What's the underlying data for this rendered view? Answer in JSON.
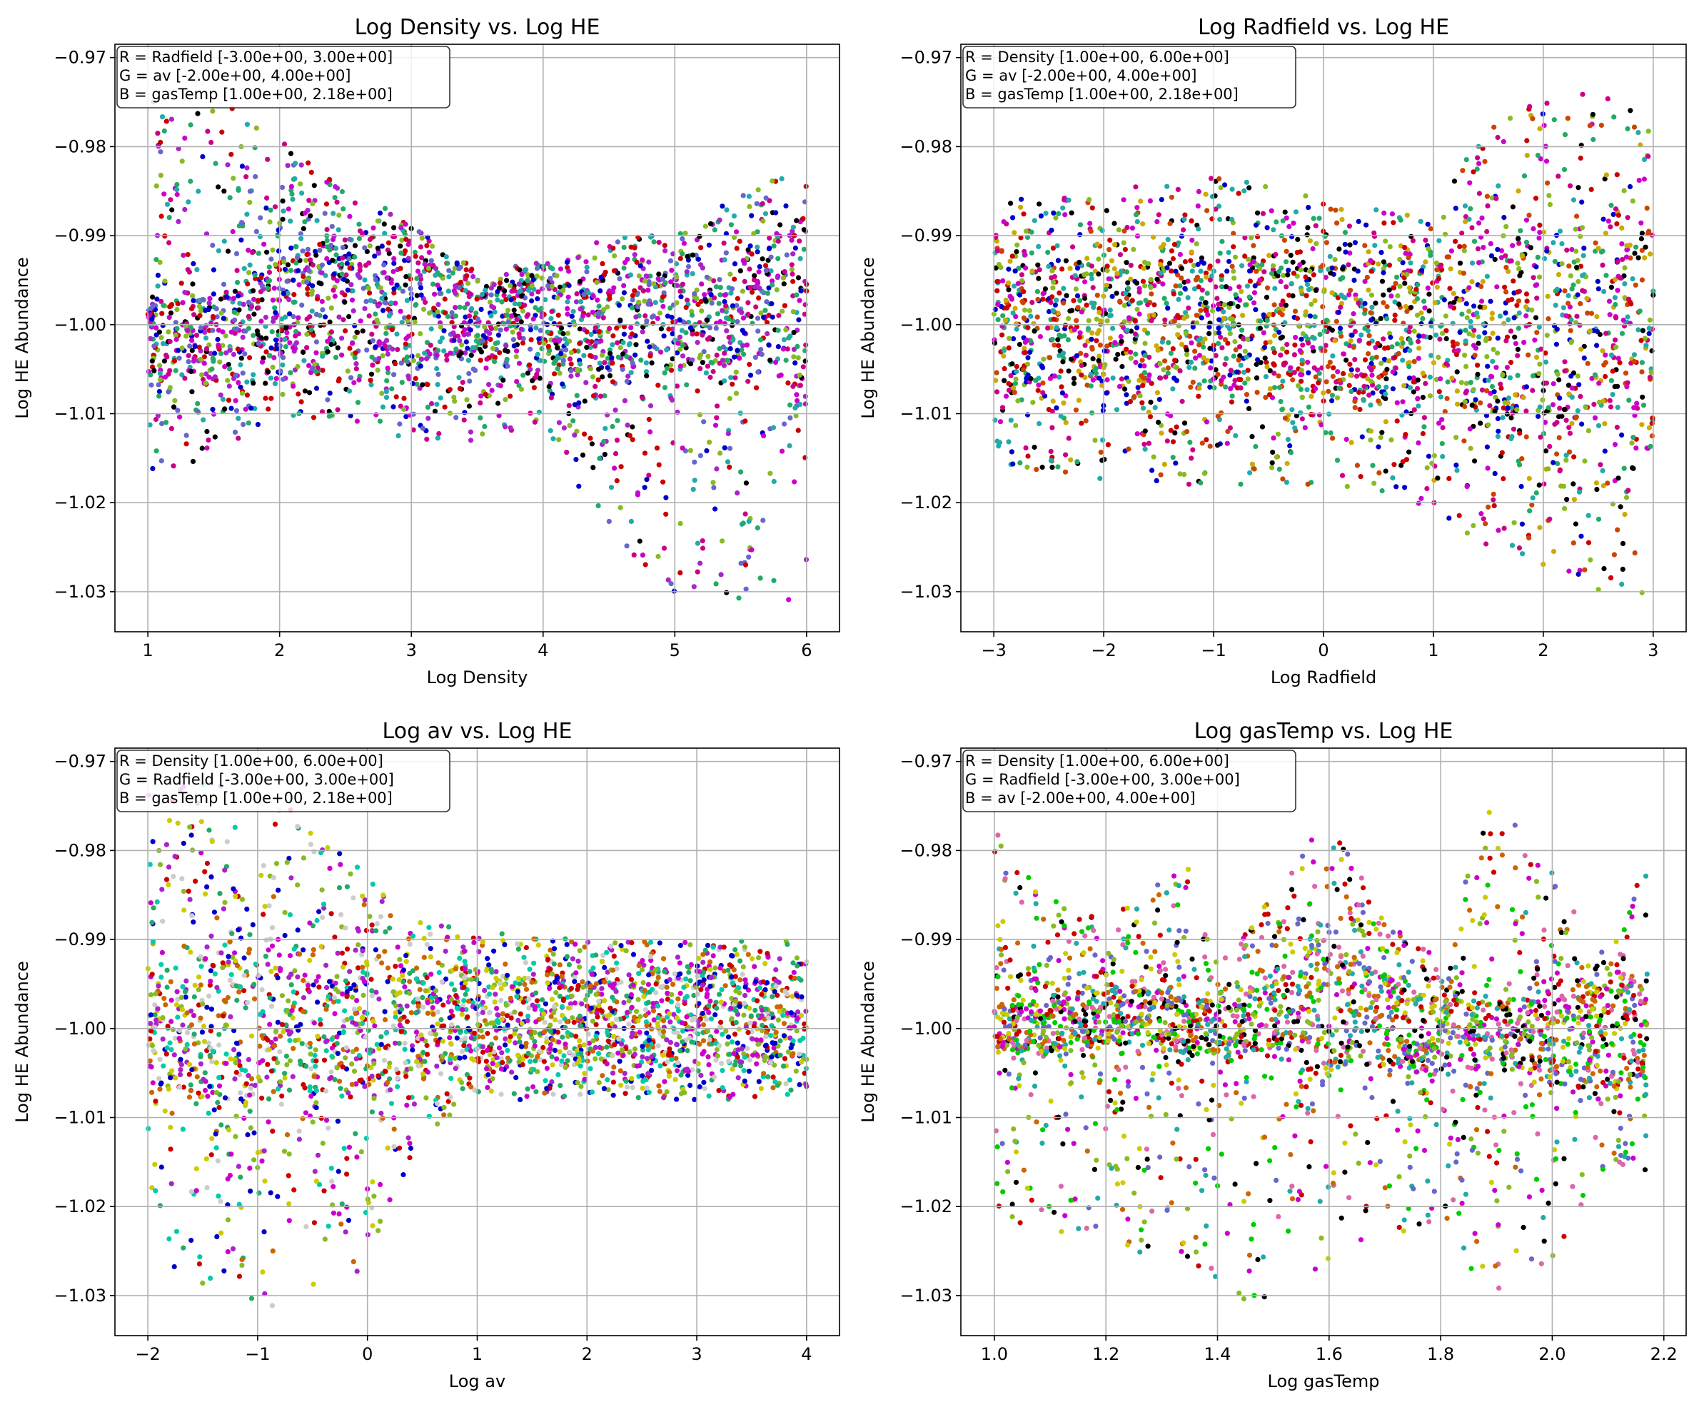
{
  "chart_data": [
    {
      "type": "scatter",
      "title": "Log Density vs. Log HE",
      "xlabel": "Log Density",
      "ylabel": "Log HE Abundance",
      "xlim": [
        0.75,
        6.25
      ],
      "ylim": [
        -1.0345,
        -0.9685
      ],
      "xticks": [
        1,
        2,
        3,
        4,
        5,
        6
      ],
      "xtick_labels": [
        "1",
        "2",
        "3",
        "4",
        "5",
        "6"
      ],
      "yticks": [
        -0.97,
        -0.98,
        -0.99,
        -1.0,
        -1.01,
        -1.02,
        -1.03
      ],
      "ytick_labels": [
        "−0.97",
        "−0.98",
        "−0.99",
        "−1.00",
        "−1.01",
        "−1.02",
        "−1.03"
      ],
      "grid": true,
      "legend_position": "top-left",
      "legend": [
        "R = Radfield [-3.00e+00, 3.00e+00]",
        "G = av [-2.00e+00, 4.00e+00]",
        "B = gasTemp [1.00e+00, 2.18e+00]"
      ],
      "colors": [
        "#cc0000",
        "#cc00cc",
        "#cc0088",
        "#0000cc",
        "#000000",
        "#22aa66",
        "#88bb22",
        "#22aaaa",
        "#6666cc",
        "#aa22cc"
      ],
      "envelope": {
        "x": [
          1.0,
          1.5,
          2.0,
          2.5,
          3.0,
          3.5,
          4.0,
          4.5,
          5.0,
          5.5,
          6.0
        ],
        "upper": [
          -0.975,
          -0.974,
          -0.979,
          -0.985,
          -0.988,
          -0.994,
          -0.993,
          -0.99,
          -0.99,
          -0.985,
          -0.982
        ],
        "lower": [
          -1.018,
          -1.015,
          -1.01,
          -1.011,
          -1.013,
          -1.013,
          -1.011,
          -1.025,
          -1.03,
          -1.031,
          -1.032
        ],
        "core_upper": [
          -0.998,
          -0.997,
          -0.993,
          -0.991,
          -0.993,
          -0.997,
          -0.996,
          -0.995,
          -0.995,
          -0.993,
          -0.99
        ],
        "core_lower": [
          -1.006,
          -1.005,
          -1.003,
          -1.003,
          -1.004,
          -1.004,
          -1.004,
          -1.006,
          -1.005,
          -1.005,
          -1.006
        ]
      }
    },
    {
      "type": "scatter",
      "title": "Log Radfield vs. Log HE",
      "xlabel": "Log Radfield",
      "ylabel": "Log HE Abundance",
      "xlim": [
        -3.3,
        3.3
      ],
      "ylim": [
        -1.0345,
        -0.9685
      ],
      "xticks": [
        -3,
        -2,
        -1,
        0,
        1,
        2,
        3
      ],
      "xtick_labels": [
        "−3",
        "−2",
        "−1",
        "0",
        "1",
        "2",
        "3"
      ],
      "yticks": [
        -0.97,
        -0.98,
        -0.99,
        -1.0,
        -1.01,
        -1.02,
        -1.03
      ],
      "ytick_labels": [
        "−0.97",
        "−0.98",
        "−0.99",
        "−1.00",
        "−1.01",
        "−1.02",
        "−1.03"
      ],
      "grid": true,
      "legend_position": "top-left",
      "legend": [
        "R = Density [1.00e+00, 6.00e+00]",
        "G = av [-2.00e+00, 4.00e+00]",
        "B = gasTemp [1.00e+00, 2.18e+00]"
      ],
      "colors": [
        "#cc0000",
        "#cc00cc",
        "#cc0088",
        "#ccaa00",
        "#0000cc",
        "#000000",
        "#22aa66",
        "#88bb22",
        "#22aaaa",
        "#cc4400"
      ],
      "envelope": {
        "x": [
          -3,
          -2,
          -1,
          0,
          1,
          1.5,
          2,
          2.5,
          3
        ],
        "upper": [
          -0.986,
          -0.985,
          -0.983,
          -0.986,
          -0.988,
          -0.977,
          -0.973,
          -0.974,
          -0.976
        ],
        "lower": [
          -1.016,
          -1.018,
          -1.018,
          -1.018,
          -1.021,
          -1.025,
          -1.027,
          -1.03,
          -1.031
        ],
        "core_upper": [
          -0.994,
          -0.994,
          -0.994,
          -0.994,
          -0.994,
          -0.993,
          -0.992,
          -0.992,
          -0.992
        ],
        "core_lower": [
          -1.006,
          -1.006,
          -1.006,
          -1.007,
          -1.008,
          -1.009,
          -1.01,
          -1.011,
          -1.012
        ]
      }
    },
    {
      "type": "scatter",
      "title": "Log av vs. Log HE",
      "xlabel": "Log av",
      "ylabel": "Log HE Abundance",
      "xlim": [
        -2.3,
        4.3
      ],
      "ylim": [
        -1.0345,
        -0.9685
      ],
      "xticks": [
        -2,
        -1,
        0,
        1,
        2,
        3,
        4
      ],
      "xtick_labels": [
        "−2",
        "−1",
        "0",
        "1",
        "2",
        "3",
        "4"
      ],
      "yticks": [
        -0.97,
        -0.98,
        -0.99,
        -1.0,
        -1.01,
        -1.02,
        -1.03
      ],
      "ytick_labels": [
        "−0.97",
        "−0.98",
        "−0.99",
        "−1.00",
        "−1.01",
        "−1.02",
        "−1.03"
      ],
      "grid": true,
      "legend_position": "top-left",
      "legend": [
        "R = Density [1.00e+00, 6.00e+00]",
        "G = Radfield [-3.00e+00, 3.00e+00]",
        "B = gasTemp [1.00e+00, 2.18e+00]"
      ],
      "colors": [
        "#00ccaa",
        "#cccc00",
        "#cc0000",
        "#cc00cc",
        "#cccccc",
        "#0000cc",
        "#22aa66",
        "#88bb22",
        "#cc6600",
        "#aa22cc"
      ],
      "envelope": {
        "x": [
          -2,
          -1.5,
          -1,
          -0.5,
          0,
          0.5,
          1,
          2,
          3,
          4
        ],
        "upper": [
          -0.973,
          -0.972,
          -0.974,
          -0.976,
          -0.983,
          -0.988,
          -0.989,
          -0.99,
          -0.99,
          -0.99
        ],
        "lower": [
          -1.026,
          -1.03,
          -1.032,
          -1.031,
          -1.027,
          -1.012,
          -1.008,
          -1.008,
          -1.008,
          -1.008
        ],
        "core_upper": [
          -0.993,
          -0.993,
          -0.993,
          -0.994,
          -0.994,
          -0.995,
          -0.995,
          -0.995,
          -0.995,
          -0.995
        ],
        "core_lower": [
          -1.006,
          -1.007,
          -1.008,
          -1.007,
          -1.006,
          -1.004,
          -1.003,
          -1.003,
          -1.003,
          -1.003
        ]
      }
    },
    {
      "type": "scatter",
      "title": "Log gasTemp vs. Log HE",
      "xlabel": "Log gasTemp",
      "ylabel": "Log HE Abundance",
      "xlim": [
        0.94,
        2.24
      ],
      "ylim": [
        -1.0345,
        -0.9685
      ],
      "xticks": [
        1.0,
        1.2,
        1.4,
        1.6,
        1.8,
        2.0,
        2.2
      ],
      "xtick_labels": [
        "1.0",
        "1.2",
        "1.4",
        "1.6",
        "1.8",
        "2.0",
        "2.2"
      ],
      "yticks": [
        -0.97,
        -0.98,
        -0.99,
        -1.0,
        -1.01,
        -1.02,
        -1.03
      ],
      "ytick_labels": [
        "−0.97",
        "−0.98",
        "−0.99",
        "−1.00",
        "−1.01",
        "−1.02",
        "−1.03"
      ],
      "grid": true,
      "legend_position": "top-left",
      "legend": [
        "R = Density [1.00e+00, 6.00e+00]",
        "G = Radfield [-3.00e+00, 3.00e+00]",
        "B = av [-2.00e+00, 4.00e+00]"
      ],
      "colors": [
        "#00cc00",
        "#cc0000",
        "#cccc00",
        "#cc00cc",
        "#22aaaa",
        "#6666cc",
        "#88bb22",
        "#cc6600",
        "#000000",
        "#dd66aa"
      ],
      "envelope": {
        "x": [
          1.0,
          1.1,
          1.2,
          1.3,
          1.35,
          1.4,
          1.5,
          1.6,
          1.7,
          1.8,
          1.9,
          2.0,
          2.1,
          2.17
        ],
        "upper": [
          -0.977,
          -0.985,
          -0.988,
          -0.983,
          -0.982,
          -0.993,
          -0.985,
          -0.976,
          -0.988,
          -0.992,
          -0.973,
          -0.982,
          -0.992,
          -0.981
        ],
        "lower": [
          -1.02,
          -1.024,
          -1.025,
          -1.026,
          -1.029,
          -1.031,
          -1.03,
          -1.027,
          -1.024,
          -1.024,
          -1.03,
          -1.026,
          -1.015,
          -1.016
        ],
        "core_upper": [
          -0.997,
          -0.997,
          -0.996,
          -0.996,
          -0.997,
          -0.997,
          -0.995,
          -0.99,
          -0.995,
          -0.997,
          -0.997,
          -0.997,
          -0.996,
          -0.995
        ],
        "core_lower": [
          -1.002,
          -1.003,
          -1.002,
          -1.003,
          -1.003,
          -1.003,
          -1.003,
          -1.004,
          -1.004,
          -1.005,
          -1.005,
          -1.005,
          -1.006,
          -1.007
        ]
      }
    }
  ]
}
